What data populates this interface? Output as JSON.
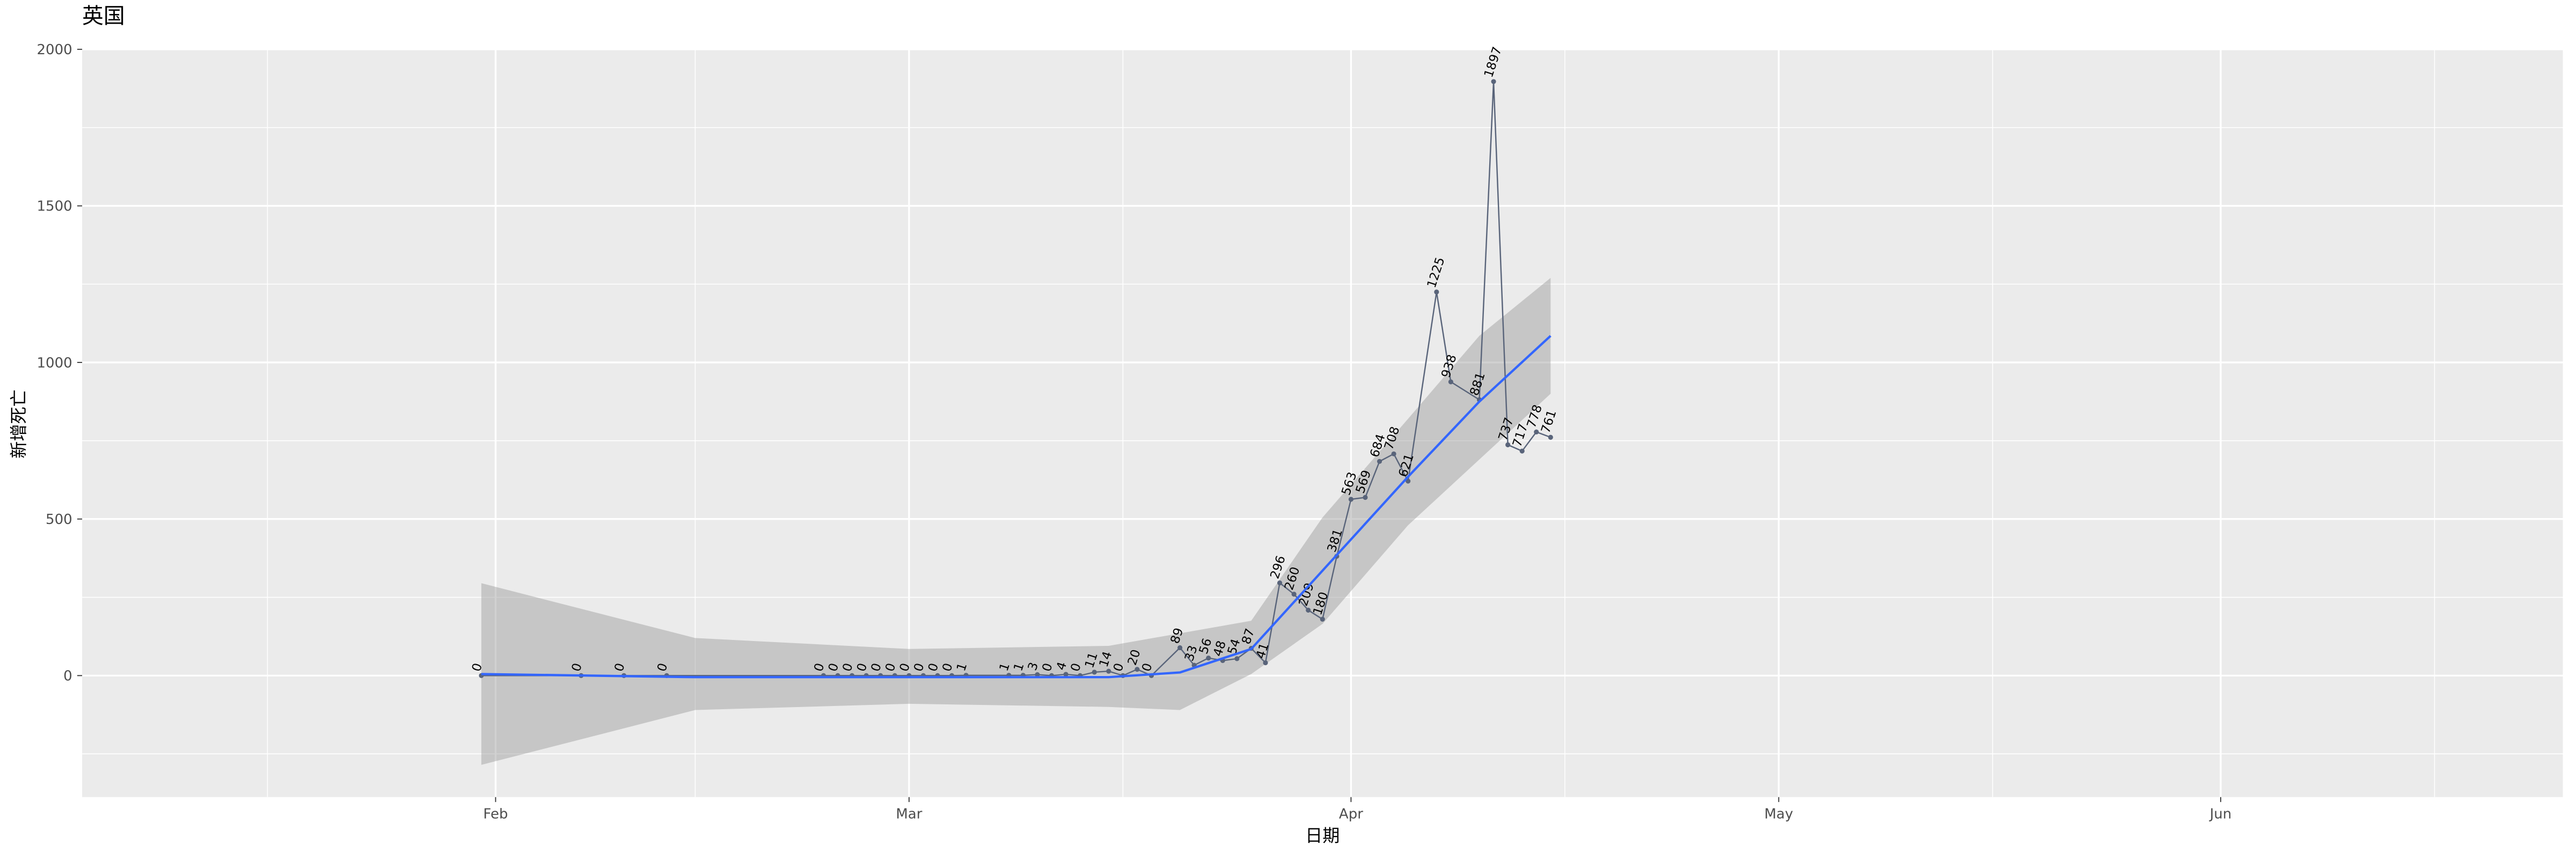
{
  "chart_data": {
    "type": "line",
    "title": "英国",
    "x_label": "日期",
    "y_label": "新增死亡",
    "x": [
      "01-31",
      "02-07",
      "02-10",
      "02-13",
      "02-24",
      "02-25",
      "02-26",
      "02-27",
      "02-28",
      "02-29",
      "03-01",
      "03-02",
      "03-03",
      "03-04",
      "03-05",
      "03-08",
      "03-09",
      "03-10",
      "03-11",
      "03-12",
      "03-13",
      "03-14",
      "03-15",
      "03-16",
      "03-17",
      "03-18",
      "03-20",
      "03-21",
      "03-22",
      "03-23",
      "03-24",
      "03-25",
      "03-26",
      "03-27",
      "03-28",
      "03-29",
      "03-30",
      "03-31",
      "04-01",
      "04-02",
      "04-03",
      "04-04",
      "04-05",
      "04-07",
      "04-08",
      "04-10",
      "04-11",
      "04-12",
      "04-13",
      "04-14",
      "04-15"
    ],
    "values": [
      0,
      0,
      0,
      0,
      0,
      0,
      0,
      0,
      0,
      0,
      0,
      0,
      0,
      0,
      1,
      1,
      1,
      3,
      0,
      4,
      0,
      11,
      14,
      0,
      20,
      0,
      89,
      33,
      56,
      48,
      54,
      87,
      41,
      296,
      260,
      209,
      180,
      381,
      563,
      569,
      684,
      708,
      621,
      1225,
      938,
      881,
      1897,
      737,
      717,
      778,
      761
    ],
    "color": "#59647a",
    "smooth": {
      "color": "#3366ff",
      "band_color": "#999999",
      "x": [
        "01-31",
        "02-15",
        "03-01",
        "03-15",
        "03-20",
        "03-25",
        "03-30",
        "04-05",
        "04-10",
        "04-15"
      ],
      "values": [
        5,
        -5,
        -5,
        -5,
        10,
        85,
        335,
        635,
        875,
        1085
      ],
      "upper": [
        295,
        120,
        85,
        95,
        135,
        175,
        505,
        820,
        1085,
        1270
      ],
      "lower": [
        -285,
        -110,
        -90,
        -100,
        -110,
        5,
        165,
        480,
        690,
        900
      ]
    },
    "xlim": [
      "01-03",
      "06-25"
    ],
    "xticks": [
      {
        "value": "02-01",
        "label": "Feb"
      },
      {
        "value": "03-01",
        "label": "Mar"
      },
      {
        "value": "04-01",
        "label": "Apr"
      },
      {
        "value": "05-01",
        "label": "May"
      },
      {
        "value": "06-01",
        "label": "Jun"
      }
    ],
    "xminorticks": [
      "01-16",
      "02-15",
      "03-16",
      "04-16",
      "05-16",
      "06-16"
    ],
    "ylim": [
      -388,
      2000
    ],
    "yticks": [
      0,
      500,
      1000,
      1500,
      2000
    ],
    "yminorticks": [
      -250,
      250,
      750,
      1250,
      1750
    ],
    "grid": true
  }
}
